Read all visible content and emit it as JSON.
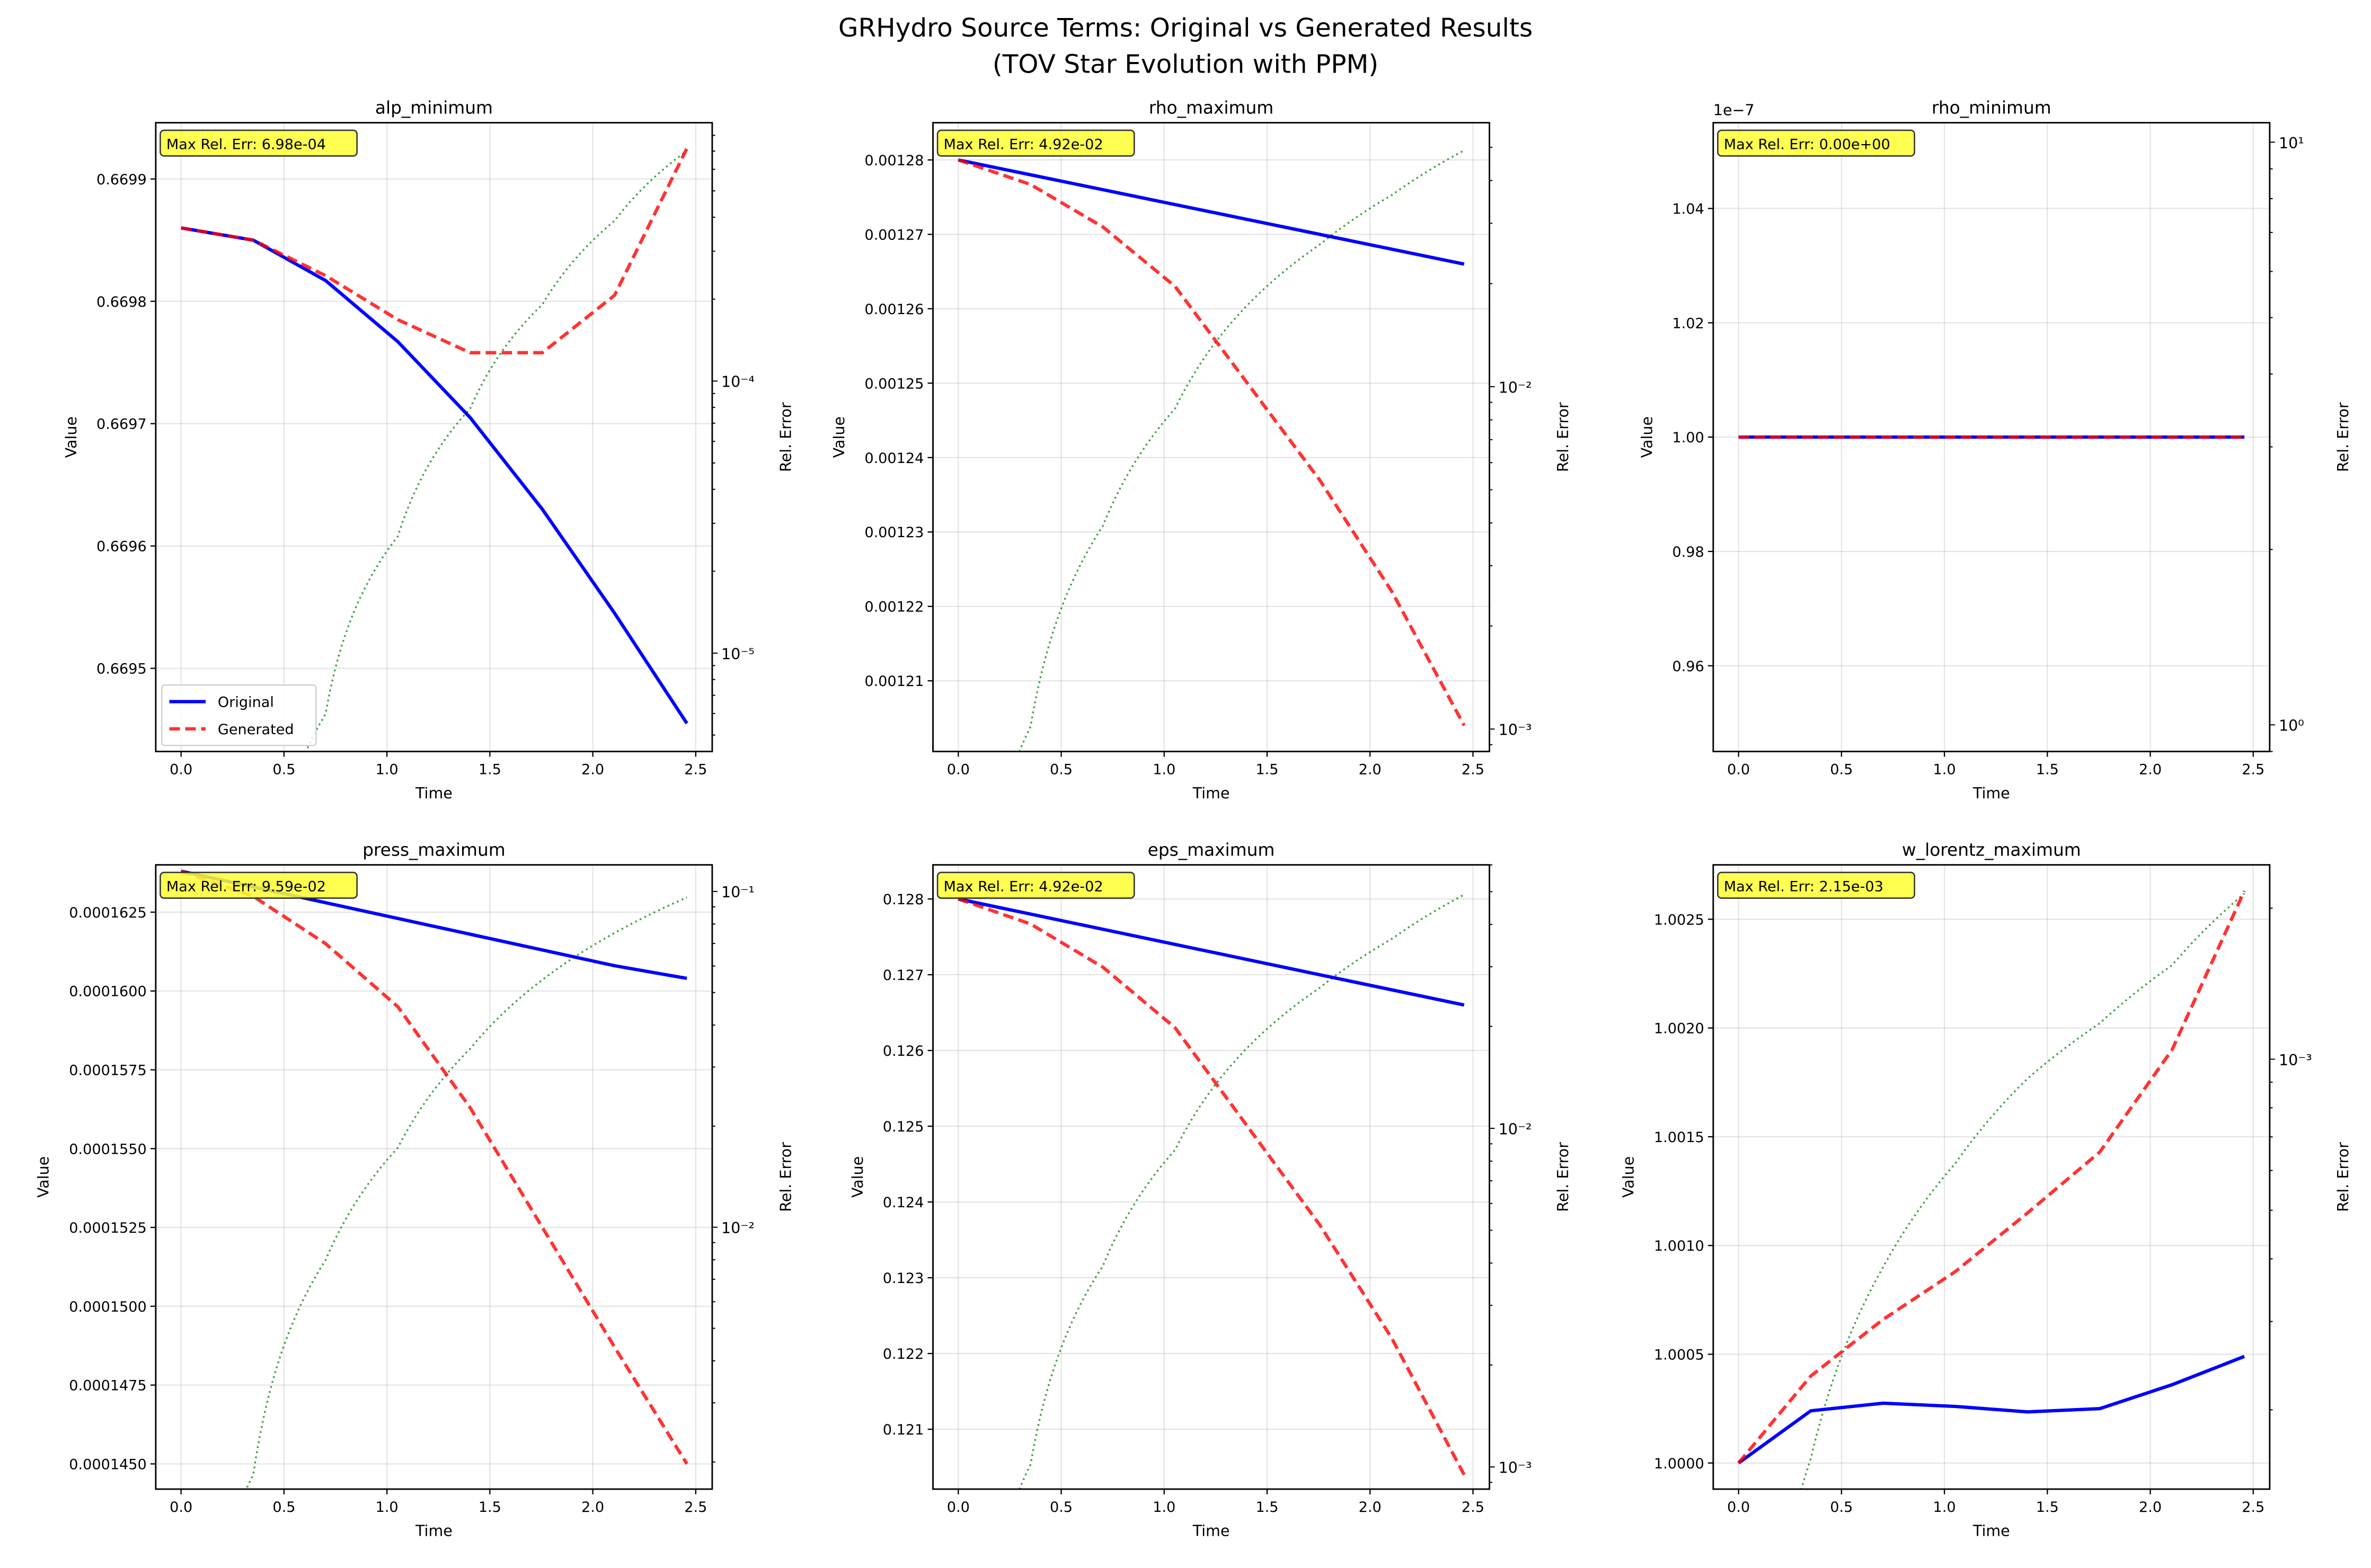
{
  "suptitle": [
    "GRHydro Source Terms: Original vs Generated Results",
    "(TOV Star Evolution with PPM)"
  ],
  "colors": {
    "original": "#0000ff",
    "generated": "#ff0000",
    "rel_error": "#008000",
    "annotation_bg": "#ffff33"
  },
  "legend": {
    "entries": [
      "Original",
      "Generated"
    ],
    "placement": "lower-left",
    "panel": 0
  },
  "chart_data": [
    {
      "type": "line",
      "title": "alp_minimum",
      "xlabel": "Time",
      "ylabel": "Value",
      "y2label": "Rel. Error",
      "y2scale": "log",
      "grid": true,
      "annotation": "Max Rel. Err: 6.98e-04",
      "x": [
        0,
        0.351,
        0.702,
        1.053,
        1.404,
        1.755,
        2.106,
        2.457
      ],
      "xlim": [
        -0.123,
        2.58
      ],
      "x_ticks": [
        0,
        0.5,
        1,
        1.5,
        2,
        2.5
      ],
      "x_tick_labels": [
        "0.0",
        "0.5",
        "1.0",
        "1.5",
        "2.0",
        "2.5"
      ],
      "series": [
        {
          "name": "Original",
          "values": [
            0.66986,
            0.66985,
            0.669817,
            0.669767,
            0.669705,
            0.66963,
            0.669545,
            0.669455
          ]
        },
        {
          "name": "Generated",
          "values": [
            0.66986,
            0.66985,
            0.669821,
            0.669785,
            0.669758,
            0.669758,
            0.669805,
            0.669925
          ]
        }
      ],
      "ylim": [
        0.669432,
        0.669946
      ],
      "y_ticks": [
        0.6695,
        0.6696,
        0.6697,
        0.6698,
        0.6699
      ],
      "y_tick_labels": [
        "0.6695",
        "0.6696",
        "0.6697",
        "0.6698",
        "0.6699"
      ],
      "y2lim": [
        4.35e-06,
        0.00089
      ],
      "y2_ticks": [
        1e-05,
        0.0001
      ],
      "y2_tick_labels": [
        "10⁻⁵",
        "10⁻⁴"
      ]
    },
    {
      "type": "line",
      "title": "rho_maximum",
      "xlabel": "Time",
      "ylabel": "Value",
      "y2label": "Rel. Error",
      "y2scale": "log",
      "grid": true,
      "annotation": "Max Rel. Err: 4.92e-02",
      "x": [
        0,
        0.351,
        0.702,
        1.053,
        1.404,
        1.755,
        2.106,
        2.457
      ],
      "xlim": [
        -0.123,
        2.58
      ],
      "x_ticks": [
        0,
        0.5,
        1,
        1.5,
        2,
        2.5
      ],
      "x_tick_labels": [
        "0.0",
        "0.5",
        "1.0",
        "1.5",
        "2.0",
        "2.5"
      ],
      "series": [
        {
          "name": "Original",
          "values": [
            0.00128,
            0.001278,
            0.001276,
            0.001274,
            0.001272,
            0.00127,
            0.001268,
            0.001266
          ]
        },
        {
          "name": "Generated",
          "values": [
            0.00128,
            0.0012767,
            0.001271,
            0.001263,
            0.00125,
            0.001237,
            0.001222,
            0.001204
          ]
        }
      ],
      "ylim": [
        0.0012005,
        0.001285
      ],
      "y_ticks": [
        0.00121,
        0.00122,
        0.00123,
        0.00124,
        0.00125,
        0.00126,
        0.00127,
        0.00128
      ],
      "y_tick_labels": [
        "0.00121",
        "0.00122",
        "0.00123",
        "0.00124",
        "0.00125",
        "0.00126",
        "0.00127",
        "0.00128"
      ],
      "y2lim": [
        0.00086,
        0.059
      ],
      "y2_ticks": [
        0.001,
        0.01
      ],
      "y2_tick_labels": [
        "10⁻³",
        "10⁻²"
      ]
    },
    {
      "type": "line",
      "title": "rho_minimum",
      "xlabel": "Time",
      "ylabel": "Value",
      "y2label": "Rel. Error",
      "y2scale": "log",
      "grid": true,
      "annotation": "Max Rel. Err: 0.00e+00",
      "y_offset_text": "1e−7",
      "x": [
        0,
        0.351,
        0.702,
        1.053,
        1.404,
        1.755,
        2.106,
        2.457
      ],
      "xlim": [
        -0.123,
        2.58
      ],
      "x_ticks": [
        0,
        0.5,
        1,
        1.5,
        2,
        2.5
      ],
      "x_tick_labels": [
        "0.0",
        "0.5",
        "1.0",
        "1.5",
        "2.0",
        "2.5"
      ],
      "series": [
        {
          "name": "Original",
          "values": [
            1e-07,
            1e-07,
            1e-07,
            1e-07,
            1e-07,
            1e-07,
            1e-07,
            1e-07
          ]
        },
        {
          "name": "Generated",
          "values": [
            1e-07,
            1e-07,
            1e-07,
            1e-07,
            1e-07,
            1e-07,
            1e-07,
            1e-07
          ]
        }
      ],
      "ylim": [
        9.45e-08,
        1.055e-07
      ],
      "y_ticks": [
        9.6e-08,
        9.8e-08,
        1e-07,
        1.02e-07,
        1.04e-07
      ],
      "y_tick_labels": [
        "0.96",
        "0.98",
        "1.00",
        "1.02",
        "1.04"
      ],
      "y2lim": [
        0.9,
        10.8
      ],
      "y2_ticks": [
        1,
        10
      ],
      "y2_tick_labels": [
        "10⁰",
        "10¹"
      ]
    },
    {
      "type": "line",
      "title": "press_maximum",
      "xlabel": "Time",
      "ylabel": "Value",
      "y2label": "Rel. Error",
      "y2scale": "log",
      "grid": true,
      "annotation": "Max Rel. Err: 9.59e-02",
      "x": [
        0,
        0.351,
        0.702,
        1.053,
        1.404,
        1.755,
        2.106,
        2.457
      ],
      "xlim": [
        -0.123,
        2.58
      ],
      "x_ticks": [
        0,
        0.5,
        1,
        1.5,
        2,
        2.5
      ],
      "x_tick_labels": [
        "0.0",
        "0.5",
        "1.0",
        "1.5",
        "2.0",
        "2.5"
      ],
      "series": [
        {
          "name": "Original",
          "values": [
            0.0001638,
            0.0001633,
            0.0001628,
            0.0001623,
            0.0001618,
            0.0001613,
            0.0001608,
            0.0001604
          ]
        },
        {
          "name": "Generated",
          "values": [
            0.0001638,
            0.000163,
            0.0001615,
            0.0001595,
            0.0001563,
            0.0001525,
            0.0001487,
            0.000145
          ]
        }
      ],
      "ylim": [
        0.0001442,
        0.000164
      ],
      "y_ticks": [
        0.000145,
        0.0001475,
        0.00015,
        0.0001525,
        0.000155,
        0.0001575,
        0.00016,
        0.0001625
      ],
      "y_tick_labels": [
        "0.0001450",
        "0.0001475",
        "0.0001500",
        "0.0001525",
        "0.0001550",
        "0.0001575",
        "0.0001600",
        "0.0001625"
      ],
      "y2lim": [
        0.00166,
        0.12
      ],
      "y2_ticks": [
        0.01,
        0.1
      ],
      "y2_tick_labels": [
        "10⁻²",
        "10⁻¹"
      ]
    },
    {
      "type": "line",
      "title": "eps_maximum",
      "xlabel": "Time",
      "ylabel": "Value",
      "y2label": "Rel. Error",
      "y2scale": "log",
      "grid": true,
      "annotation": "Max Rel. Err: 4.92e-02",
      "x": [
        0,
        0.351,
        0.702,
        1.053,
        1.404,
        1.755,
        2.106,
        2.457
      ],
      "xlim": [
        -0.123,
        2.58
      ],
      "x_ticks": [
        0,
        0.5,
        1,
        1.5,
        2,
        2.5
      ],
      "x_tick_labels": [
        "0.0",
        "0.5",
        "1.0",
        "1.5",
        "2.0",
        "2.5"
      ],
      "series": [
        {
          "name": "Original",
          "values": [
            0.128,
            0.1278,
            0.1276,
            0.1274,
            0.1272,
            0.127,
            0.1268,
            0.1266
          ]
        },
        {
          "name": "Generated",
          "values": [
            0.128,
            0.12767,
            0.1271,
            0.1263,
            0.125,
            0.1237,
            0.1222,
            0.1204
          ]
        }
      ],
      "ylim": [
        0.12021,
        0.12845
      ],
      "y_ticks": [
        0.121,
        0.122,
        0.123,
        0.124,
        0.125,
        0.126,
        0.127,
        0.128
      ],
      "y_tick_labels": [
        "0.121",
        "0.122",
        "0.123",
        "0.124",
        "0.125",
        "0.126",
        "0.127",
        "0.128"
      ],
      "y2lim": [
        0.00086,
        0.06
      ],
      "y2_ticks": [
        0.001,
        0.01
      ],
      "y2_tick_labels": [
        "10⁻³",
        "10⁻²"
      ]
    },
    {
      "type": "line",
      "title": "w_lorentz_maximum",
      "xlabel": "Time",
      "ylabel": "Value",
      "y2label": "Rel. Error",
      "y2scale": "log",
      "grid": true,
      "annotation": "Max Rel. Err: 2.15e-03",
      "x": [
        0,
        0.351,
        0.702,
        1.053,
        1.404,
        1.755,
        2.106,
        2.457
      ],
      "xlim": [
        -0.123,
        2.58
      ],
      "x_ticks": [
        0,
        0.5,
        1,
        1.5,
        2,
        2.5
      ],
      "x_tick_labels": [
        "0.0",
        "0.5",
        "1.0",
        "1.5",
        "2.0",
        "2.5"
      ],
      "series": [
        {
          "name": "Original",
          "values": [
            1.0,
            1.00024,
            1.000275,
            1.00026,
            1.000235,
            1.00025,
            1.00036,
            1.00049
          ]
        },
        {
          "name": "Generated",
          "values": [
            1.0,
            1.0004,
            1.00066,
            1.00088,
            1.00115,
            1.00143,
            1.0019,
            1.00263
          ]
        }
      ],
      "ylim": [
        0.99988,
        1.00275
      ],
      "y_ticks": [
        1.0,
        1.0005,
        1.001,
        1.0015,
        1.002,
        1.0025
      ],
      "y_tick_labels": [
        "1.0000",
        "1.0005",
        "1.0010",
        "1.0015",
        "1.0020",
        "1.0025"
      ],
      "y2lim": [
        0.000139,
        0.00244
      ],
      "y2_ticks": [
        0.001
      ],
      "y2_tick_labels": [
        "10⁻³"
      ]
    }
  ]
}
